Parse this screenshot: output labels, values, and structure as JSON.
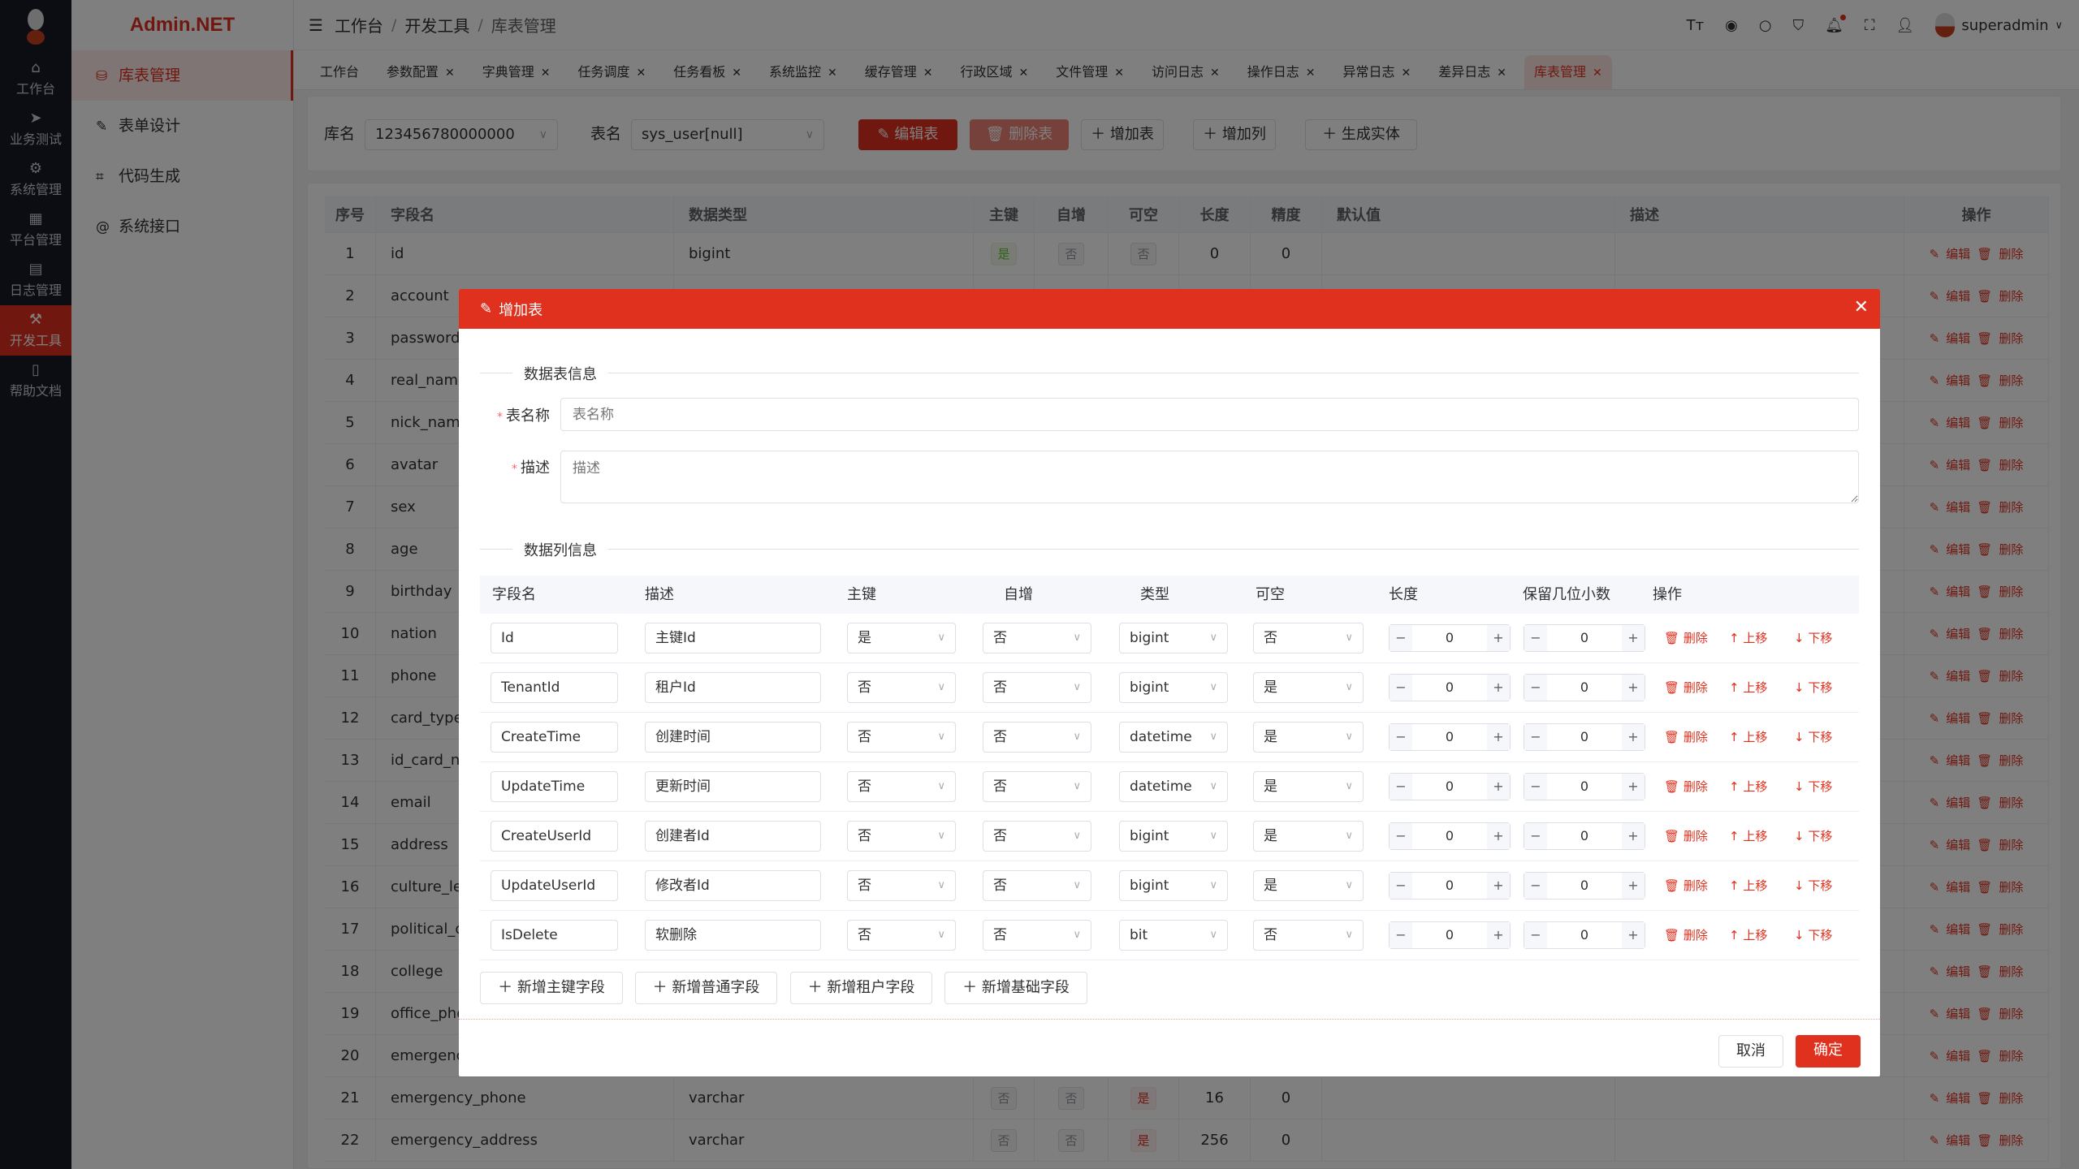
{
  "rail": {
    "items": [
      {
        "label": "工作台",
        "icon": "home-icon"
      },
      {
        "label": "业务测试",
        "icon": "send-icon"
      },
      {
        "label": "系统管理",
        "icon": "gear-icon"
      },
      {
        "label": "平台管理",
        "icon": "grid-icon"
      },
      {
        "label": "日志管理",
        "icon": "document-icon"
      },
      {
        "label": "开发工具",
        "icon": "tool-icon",
        "active": true
      },
      {
        "label": "帮助文档",
        "icon": "book-icon"
      }
    ]
  },
  "menu": {
    "brand": "Admin.NET",
    "items": [
      {
        "label": "库表管理",
        "icon": "database-icon",
        "active": true
      },
      {
        "label": "表单设计",
        "icon": "edit-icon"
      },
      {
        "label": "代码生成",
        "icon": "crop-icon"
      },
      {
        "label": "系统接口",
        "icon": "at-icon"
      }
    ]
  },
  "header": {
    "breadcrumb": [
      "工作台",
      "开发工具",
      "库表管理"
    ],
    "user": "superadmin"
  },
  "tabs": [
    {
      "label": "工作台",
      "closable": false
    },
    {
      "label": "参数配置",
      "closable": true
    },
    {
      "label": "字典管理",
      "closable": true
    },
    {
      "label": "任务调度",
      "closable": true
    },
    {
      "label": "任务看板",
      "closable": true
    },
    {
      "label": "系统监控",
      "closable": true
    },
    {
      "label": "缓存管理",
      "closable": true
    },
    {
      "label": "行政区域",
      "closable": true
    },
    {
      "label": "文件管理",
      "closable": true
    },
    {
      "label": "访问日志",
      "closable": true
    },
    {
      "label": "操作日志",
      "closable": true
    },
    {
      "label": "异常日志",
      "closable": true
    },
    {
      "label": "差异日志",
      "closable": true
    },
    {
      "label": "库表管理",
      "closable": true,
      "active": true
    }
  ],
  "toolbar": {
    "db_label": "库名",
    "db_value": "123456780000000",
    "table_label": "表名",
    "table_value": "sys_user[null]",
    "edit_table": "编辑表",
    "delete_table": "删除表",
    "add_table": "增加表",
    "add_column": "增加列",
    "gen_entity": "生成实体"
  },
  "grid": {
    "columns": [
      "序号",
      "字段名",
      "数据类型",
      "主键",
      "自增",
      "可空",
      "长度",
      "精度",
      "默认值",
      "描述",
      "操作"
    ],
    "edit_label": "编辑",
    "delete_label": "删除",
    "rows": [
      {
        "no": "1",
        "name": "id",
        "type": "bigint",
        "pk": "是",
        "inc": "否",
        "nullable": "否",
        "len": "0",
        "prec": "0"
      },
      {
        "no": "2",
        "name": "account"
      },
      {
        "no": "3",
        "name": "password"
      },
      {
        "no": "4",
        "name": "real_name"
      },
      {
        "no": "5",
        "name": "nick_name"
      },
      {
        "no": "6",
        "name": "avatar"
      },
      {
        "no": "7",
        "name": "sex"
      },
      {
        "no": "8",
        "name": "age"
      },
      {
        "no": "9",
        "name": "birthday"
      },
      {
        "no": "10",
        "name": "nation"
      },
      {
        "no": "11",
        "name": "phone"
      },
      {
        "no": "12",
        "name": "card_type"
      },
      {
        "no": "13",
        "name": "id_card_nu"
      },
      {
        "no": "14",
        "name": "email"
      },
      {
        "no": "15",
        "name": "address"
      },
      {
        "no": "16",
        "name": "culture_lev"
      },
      {
        "no": "17",
        "name": "political_ou"
      },
      {
        "no": "18",
        "name": "college"
      },
      {
        "no": "19",
        "name": "office_phon"
      },
      {
        "no": "20",
        "name": "emergency"
      },
      {
        "no": "21",
        "name": "emergency_phone",
        "type": "varchar",
        "pk": "否",
        "inc": "否",
        "nullable": "是",
        "len": "16",
        "prec": "0"
      },
      {
        "no": "22",
        "name": "emergency_address",
        "type": "varchar",
        "pk": "否",
        "inc": "否",
        "nullable": "是",
        "len": "256",
        "prec": "0"
      }
    ]
  },
  "modal": {
    "title": "增加表",
    "section_table": "数据表信息",
    "name_label": "表名称",
    "name_placeholder": "表名称",
    "desc_label": "描述",
    "desc_placeholder": "描述",
    "section_columns": "数据列信息",
    "columns": [
      "字段名",
      "描述",
      "主键",
      "自增",
      "类型",
      "可空",
      "长度",
      "保留几位小数",
      "操作"
    ],
    "op_delete": "删除",
    "op_up": "上移",
    "op_down": "下移",
    "rows": [
      {
        "field": "Id",
        "desc": "主键Id",
        "pk": "是",
        "inc": "否",
        "type": "bigint",
        "nullable": "否",
        "len": "0",
        "dec": "0"
      },
      {
        "field": "TenantId",
        "desc": "租户Id",
        "pk": "否",
        "inc": "否",
        "type": "bigint",
        "nullable": "是",
        "len": "0",
        "dec": "0"
      },
      {
        "field": "CreateTime",
        "desc": "创建时间",
        "pk": "否",
        "inc": "否",
        "type": "datetime",
        "nullable": "是",
        "len": "0",
        "dec": "0"
      },
      {
        "field": "UpdateTime",
        "desc": "更新时间",
        "pk": "否",
        "inc": "否",
        "type": "datetime",
        "nullable": "是",
        "len": "0",
        "dec": "0"
      },
      {
        "field": "CreateUserId",
        "desc": "创建者Id",
        "pk": "否",
        "inc": "否",
        "type": "bigint",
        "nullable": "是",
        "len": "0",
        "dec": "0"
      },
      {
        "field": "UpdateUserId",
        "desc": "修改者Id",
        "pk": "否",
        "inc": "否",
        "type": "bigint",
        "nullable": "是",
        "len": "0",
        "dec": "0"
      },
      {
        "field": "IsDelete",
        "desc": "软删除",
        "pk": "否",
        "inc": "否",
        "type": "bit",
        "nullable": "否",
        "len": "0",
        "dec": "0"
      }
    ],
    "add_buttons": [
      "新增主键字段",
      "新增普通字段",
      "新增租户字段",
      "新增基础字段"
    ],
    "cancel": "取消",
    "confirm": "确定"
  },
  "colors": {
    "brand": "#e0301e",
    "success": "#67c23a"
  }
}
